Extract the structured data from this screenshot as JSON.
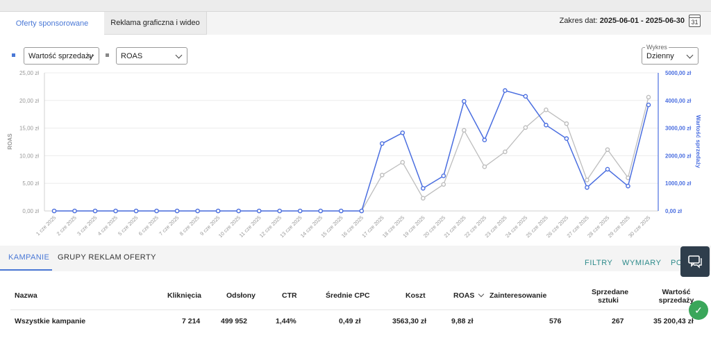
{
  "tabs": [
    {
      "label": "Oferty sponsorowane"
    },
    {
      "label": "Reklama graficzna i wideo"
    }
  ],
  "date_range": {
    "label": "Zakres dat:",
    "value": "2025-06-01 - 2025-06-30",
    "calendar_day": "31"
  },
  "controls": {
    "left_metric": "Wartość sprzedaży",
    "right_metric": "ROAS",
    "wykres_label": "Wykres",
    "wykres_value": "Dzienny"
  },
  "colors": {
    "blue": "#4a6ee0",
    "gray": "#bdbdbd",
    "accent": "#4a78d6",
    "teal": "#2d8a8a"
  },
  "chart_data": {
    "type": "line",
    "x": [
      "1 cze 2025",
      "2 cze 2025",
      "3 cze 2025",
      "4 cze 2025",
      "5 cze 2025",
      "6 cze 2025",
      "7 cze 2025",
      "8 cze 2025",
      "9 cze 2025",
      "10 cze 2025",
      "11 cze 2025",
      "12 cze 2025",
      "13 cze 2025",
      "14 cze 2025",
      "15 cze 2025",
      "16 cze 2025",
      "17 cze 2025",
      "18 cze 2025",
      "19 cze 2025",
      "20 cze 2025",
      "21 cze 2025",
      "22 cze 2025",
      "23 cze 2025",
      "24 cze 2025",
      "25 cze 2025",
      "26 cze 2025",
      "27 cze 2025",
      "28 cze 2025",
      "29 cze 2025",
      "30 cze 2025"
    ],
    "left_axis": {
      "label": "ROAS",
      "ticks": [
        "0,00 zł",
        "5,00 zł",
        "10,00 zł",
        "15,00 zł",
        "20,00 zł",
        "25,00 zł"
      ],
      "ylim": [
        0,
        25
      ]
    },
    "right_axis": {
      "label": "Wartość sprzedaży",
      "ticks": [
        "0,00 zł",
        "1000,00 zł",
        "2000,00 zł",
        "3000,00 zł",
        "4000,00 zł",
        "5000,00 zł"
      ],
      "ylim": [
        0,
        5000
      ]
    },
    "series": [
      {
        "name": "ROAS",
        "axis": "left",
        "color": "#bdbdbd",
        "values": [
          0,
          0,
          0,
          0,
          0,
          0,
          0,
          0,
          0,
          0,
          0,
          0,
          0,
          0,
          0,
          0,
          6.5,
          8.8,
          2.3,
          4.8,
          14.6,
          8.0,
          10.7,
          15.1,
          18.3,
          15.8,
          5.6,
          11.1,
          6.0,
          20.6
        ]
      },
      {
        "name": "Wartość sprzedaży",
        "axis": "right",
        "color": "#4a6ee0",
        "values": [
          0,
          0,
          0,
          0,
          0,
          0,
          0,
          0,
          0,
          0,
          0,
          0,
          0,
          0,
          0,
          0,
          2440,
          2830,
          820,
          1270,
          3970,
          2570,
          4360,
          4150,
          3110,
          2620,
          850,
          1510,
          900,
          3840
        ]
      }
    ],
    "grid": true
  },
  "subtabs": [
    {
      "label": "KAMPANIE"
    },
    {
      "label": "GRUPY REKLAM"
    },
    {
      "label": "OFERTY"
    }
  ],
  "actions": {
    "filters": "FILTRY",
    "dimensions": "WYMIARY",
    "more": "PO"
  },
  "table": {
    "headers": {
      "name": "Nazwa",
      "clicks": "Kliknięcia",
      "views": "Odsłony",
      "ctr": "CTR",
      "cpc": "Średnie CPC",
      "cost": "Koszt",
      "roas": "ROAS",
      "interest": "Zainteresowanie",
      "sold_1": "Sprzedane",
      "sold_2": "sztuki",
      "value_1": "Wartość",
      "value_2": "sprzedaży"
    },
    "rows": [
      {
        "name": "Wszystkie kampanie",
        "clicks": "7 214",
        "views": "499 952",
        "ctr": "1,44%",
        "cpc": "0,49 zł",
        "cost": "3563,30 zł",
        "roas": "9,88 zł",
        "interest": "576",
        "sold": "267",
        "value": "35 200,43 zł"
      }
    ]
  }
}
